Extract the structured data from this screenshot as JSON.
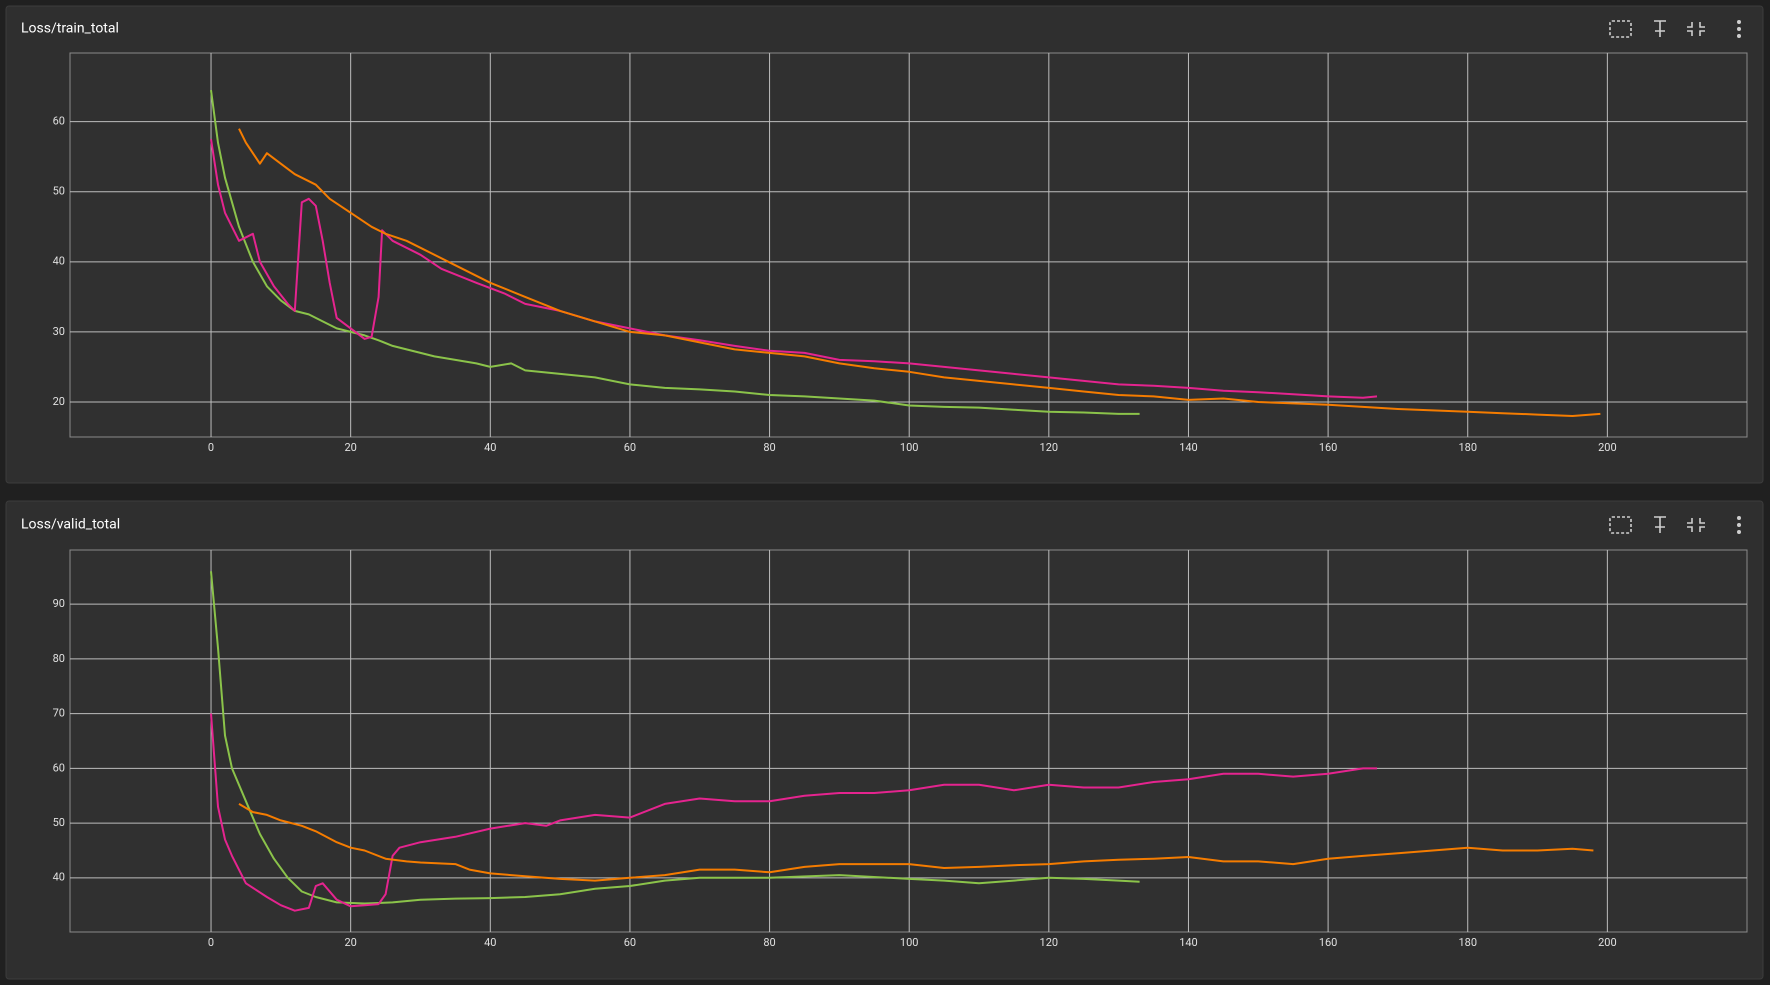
{
  "chart_data": [
    {
      "type": "line",
      "title": "Loss/train_total",
      "grid": true,
      "xlim": [
        -20.2,
        220
      ],
      "xticks": [
        0,
        20,
        40,
        60,
        80,
        100,
        120,
        140,
        160,
        180,
        200
      ],
      "ylim": [
        15,
        69.8
      ],
      "yticks": [
        20,
        30,
        40,
        50,
        60
      ],
      "series": [
        {
          "color": "#8bc34a",
          "x": [
            0,
            1,
            2,
            4,
            6,
            8,
            10,
            12,
            14,
            16,
            18,
            20,
            22,
            24,
            26,
            28,
            30,
            32,
            35,
            38,
            40,
            43,
            45,
            50,
            55,
            60,
            65,
            70,
            75,
            80,
            85,
            90,
            95,
            100,
            105,
            110,
            115,
            120,
            125,
            130,
            133
          ],
          "values": [
            64.5,
            57,
            52,
            45,
            40,
            36.5,
            34.5,
            33,
            32.5,
            31.5,
            30.5,
            30,
            29.5,
            28.8,
            28,
            27.5,
            27,
            26.5,
            26,
            25.5,
            25,
            25.5,
            24.5,
            24,
            23.5,
            22.5,
            22,
            21.8,
            21.5,
            21,
            20.8,
            20.5,
            20.2,
            19.5,
            19.3,
            19.2,
            18.9,
            18.6,
            18.5,
            18.3,
            18.3
          ]
        },
        {
          "color": "#e5248f",
          "x": [
            0,
            1,
            2,
            4,
            6,
            7,
            9,
            11,
            12,
            13,
            14,
            15,
            16,
            17,
            18,
            20,
            22,
            23,
            24,
            24.5,
            26,
            30,
            33,
            38,
            42,
            45,
            50,
            55,
            60,
            65,
            70,
            75,
            80,
            85,
            90,
            95,
            100,
            105,
            110,
            115,
            120,
            125,
            130,
            135,
            140,
            145,
            150,
            155,
            160,
            165,
            167
          ],
          "values": [
            57.5,
            51,
            47,
            43,
            44,
            40,
            36.5,
            34,
            33,
            48.5,
            49,
            48,
            43,
            37,
            32,
            30.5,
            29,
            29.3,
            35,
            44.5,
            43,
            41,
            39,
            37,
            35.5,
            34,
            33,
            31.5,
            30.5,
            29.5,
            28.8,
            28,
            27.3,
            27,
            26,
            25.8,
            25.5,
            25,
            24.5,
            24,
            23.5,
            23,
            22.5,
            22.3,
            22,
            21.6,
            21.4,
            21.1,
            20.8,
            20.6,
            20.8
          ]
        },
        {
          "color": "#f57c00",
          "x": [
            4,
            5,
            7,
            8,
            10,
            12,
            15,
            17,
            20,
            23,
            25,
            28,
            30,
            35,
            40,
            45,
            50,
            55,
            60,
            65,
            70,
            75,
            80,
            85,
            90,
            95,
            100,
            105,
            110,
            115,
            120,
            125,
            130,
            135,
            140,
            145,
            150,
            155,
            160,
            165,
            170,
            175,
            180,
            185,
            190,
            195,
            199
          ],
          "values": [
            59,
            57,
            54,
            55.5,
            54,
            52.5,
            51,
            49,
            47,
            45,
            44,
            43,
            42,
            39.5,
            37,
            35,
            33,
            31.5,
            30,
            29.5,
            28.5,
            27.5,
            27,
            26.5,
            25.5,
            24.8,
            24.3,
            23.5,
            23,
            22.5,
            22,
            21.5,
            21,
            20.8,
            20.3,
            20.5,
            20,
            19.8,
            19.6,
            19.3,
            19,
            18.8,
            18.6,
            18.4,
            18.2,
            18,
            18.3
          ]
        }
      ]
    },
    {
      "type": "line",
      "title": "Loss/valid_total",
      "grid": true,
      "xlim": [
        -20.2,
        220
      ],
      "xticks": [
        0,
        20,
        40,
        60,
        80,
        100,
        120,
        140,
        160,
        180,
        200
      ],
      "ylim": [
        30.1,
        99.9
      ],
      "yticks": [
        40,
        50,
        60,
        70,
        80,
        90
      ],
      "series": [
        {
          "color": "#8bc34a",
          "x": [
            0,
            1,
            2,
            3,
            5,
            7,
            9,
            11,
            13,
            15,
            18,
            22,
            26,
            30,
            35,
            40,
            45,
            50,
            55,
            60,
            65,
            70,
            80,
            90,
            100,
            105,
            110,
            115,
            120,
            125,
            130,
            133
          ],
          "values": [
            96,
            82,
            66,
            60,
            54,
            48,
            43.5,
            40,
            37.5,
            36.5,
            35.5,
            35.3,
            35.5,
            36,
            36.2,
            36.3,
            36.5,
            37,
            38,
            38.5,
            39.5,
            40,
            40,
            40.5,
            39.8,
            39.5,
            39,
            39.5,
            40,
            39.8,
            39.5,
            39.3
          ]
        },
        {
          "color": "#e5248f",
          "x": [
            0,
            1,
            2,
            3,
            5,
            8,
            10,
            12,
            14,
            15,
            16,
            18,
            20,
            22,
            24,
            25,
            26,
            27,
            30,
            35,
            40,
            45,
            48,
            50,
            55,
            60,
            65,
            70,
            75,
            80,
            85,
            90,
            95,
            100,
            105,
            110,
            115,
            120,
            125,
            130,
            135,
            140,
            145,
            150,
            155,
            160,
            165,
            167
          ],
          "values": [
            70,
            53,
            47,
            44,
            39,
            36.5,
            35,
            34,
            34.5,
            38.5,
            39,
            36,
            34.8,
            35,
            35.2,
            37,
            44,
            45.5,
            46.5,
            47.5,
            49,
            50,
            49.5,
            50.5,
            51.5,
            51,
            53.5,
            54.5,
            54,
            54,
            55,
            55.5,
            55.5,
            56,
            57,
            57,
            56,
            57,
            56.5,
            56.5,
            57.5,
            58,
            59,
            59,
            58.5,
            59,
            60,
            60
          ]
        },
        {
          "color": "#f57c00",
          "x": [
            4,
            6,
            8,
            10,
            13,
            15,
            18,
            20,
            22,
            25,
            28,
            30,
            35,
            37,
            40,
            45,
            50,
            55,
            60,
            65,
            70,
            75,
            80,
            85,
            90,
            95,
            100,
            105,
            110,
            115,
            120,
            125,
            130,
            135,
            140,
            145,
            150,
            155,
            160,
            165,
            170,
            175,
            180,
            185,
            190,
            195,
            198
          ],
          "values": [
            53.5,
            52,
            51.5,
            50.5,
            49.5,
            48.5,
            46.5,
            45.5,
            45,
            43.5,
            43,
            42.8,
            42.5,
            41.5,
            40.8,
            40.3,
            39.8,
            39.5,
            40,
            40.5,
            41.5,
            41.5,
            41,
            42,
            42.5,
            42.5,
            42.5,
            41.8,
            42,
            42.3,
            42.5,
            43,
            43.3,
            43.5,
            43.8,
            43,
            43,
            42.5,
            43.5,
            44,
            44.5,
            45,
            45.5,
            45,
            45,
            45.3,
            45
          ]
        }
      ]
    }
  ]
}
